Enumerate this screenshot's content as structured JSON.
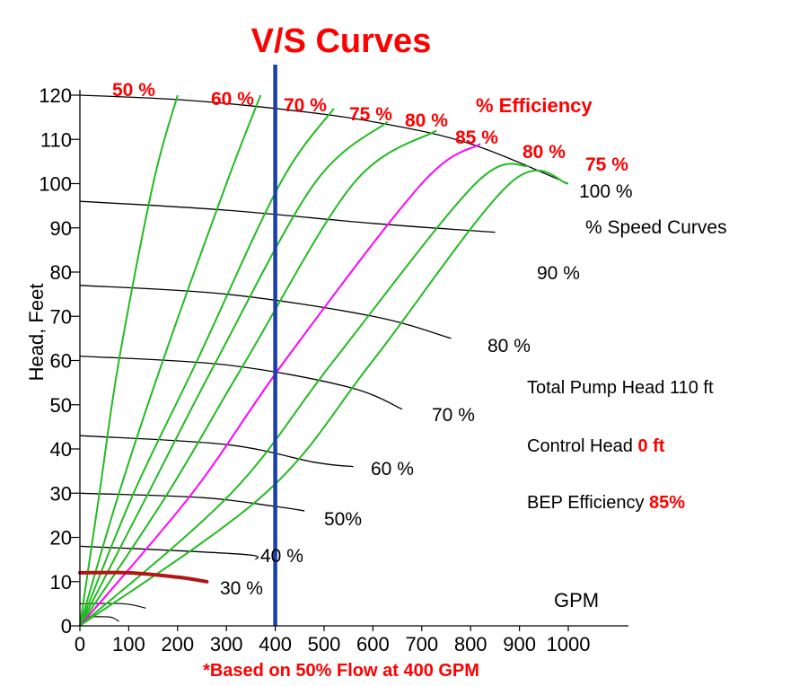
{
  "chart_data": {
    "type": "line",
    "title": "V/S Curves",
    "footnote": "*Based on 50% Flow at 400 GPM",
    "xlabel": "GPM",
    "ylabel": "Head, Feet",
    "xlim": [
      0,
      1000
    ],
    "ylim": [
      0,
      120
    ],
    "x_ticks": [
      "0",
      "100",
      "200",
      "300",
      "400",
      "500",
      "600",
      "700",
      "800",
      "900",
      "1000"
    ],
    "y_ticks": [
      "0",
      "10",
      "20",
      "30",
      "40",
      "50",
      "60",
      "70",
      "80",
      "90",
      "100",
      "110",
      "120"
    ],
    "speed_section_label": "% Speed Curves",
    "efficiency_section_label": "% Efficiency",
    "speed_curves": [
      {
        "name": "100 %",
        "points": [
          [
            0,
            120
          ],
          [
            200,
            119
          ],
          [
            400,
            117
          ],
          [
            600,
            114
          ],
          [
            800,
            109
          ],
          [
            1000,
            100
          ]
        ]
      },
      {
        "name": "90 %",
        "points": [
          [
            0,
            96
          ],
          [
            300,
            94
          ],
          [
            600,
            91
          ],
          [
            850,
            89
          ]
        ]
      },
      {
        "name": "80 %",
        "points": [
          [
            0,
            77
          ],
          [
            300,
            75
          ],
          [
            600,
            70
          ],
          [
            760,
            65
          ]
        ]
      },
      {
        "name": "70 %",
        "points": [
          [
            0,
            61
          ],
          [
            300,
            59
          ],
          [
            550,
            54
          ],
          [
            660,
            49
          ]
        ]
      },
      {
        "name": "60 %",
        "points": [
          [
            0,
            43
          ],
          [
            300,
            41
          ],
          [
            480,
            37
          ],
          [
            560,
            36
          ]
        ]
      },
      {
        "name": "50%",
        "points": [
          [
            0,
            30
          ],
          [
            250,
            29
          ],
          [
            400,
            27
          ],
          [
            460,
            26
          ]
        ]
      },
      {
        "name": "40 %",
        "points": [
          [
            0,
            18
          ],
          [
            200,
            17
          ],
          [
            350,
            16
          ],
          [
            360,
            15
          ]
        ]
      },
      {
        "name": "30 %",
        "points": [
          [
            0,
            12
          ],
          [
            100,
            12
          ],
          [
            200,
            11
          ],
          [
            260,
            10
          ]
        ]
      }
    ],
    "small_speed_curves": [
      {
        "points": [
          [
            0,
            5
          ],
          [
            90,
            5
          ],
          [
            135,
            4
          ]
        ]
      },
      {
        "points": [
          [
            0,
            2
          ],
          [
            60,
            2
          ],
          [
            80,
            1
          ]
        ]
      }
    ],
    "efficiency_curves": [
      {
        "name": "50 %",
        "label_pos": [
          90,
          122
        ],
        "points": [
          [
            0,
            0
          ],
          [
            40,
            30
          ],
          [
            80,
            60
          ],
          [
            150,
            100
          ],
          [
            200,
            120
          ]
        ]
      },
      {
        "name": "60 %",
        "label_pos": [
          280,
          119
        ],
        "points": [
          [
            0,
            0
          ],
          [
            80,
            30
          ],
          [
            170,
            60
          ],
          [
            300,
            100
          ],
          [
            370,
            120
          ]
        ]
      },
      {
        "name": "70 %",
        "label_pos": [
          480,
          116
        ],
        "points": [
          [
            0,
            0
          ],
          [
            110,
            30
          ],
          [
            240,
            60
          ],
          [
            410,
            100
          ],
          [
            520,
            117
          ]
        ]
      },
      {
        "name": "75 %",
        "label_pos": [
          590,
          113
        ],
        "points": [
          [
            0,
            0
          ],
          [
            140,
            30
          ],
          [
            280,
            60
          ],
          [
            480,
            100
          ],
          [
            630,
            114
          ]
        ]
      },
      {
        "name": "80 %",
        "label_pos": [
          700,
          112
        ],
        "points": [
          [
            0,
            0
          ],
          [
            180,
            30
          ],
          [
            340,
            60
          ],
          [
            560,
            100
          ],
          [
            730,
            112
          ]
        ]
      },
      {
        "name": "85 %",
        "label_pos": [
          820,
          109
        ],
        "points": [
          [
            0,
            0
          ],
          [
            230,
            30
          ],
          [
            420,
            60
          ],
          [
            700,
            100
          ],
          [
            820,
            109
          ]
        ]
      },
      {
        "name": "80 %",
        "label_pos": [
          920,
          104
        ],
        "points": [
          [
            0,
            0
          ],
          [
            310,
            30
          ],
          [
            520,
            60
          ],
          [
            810,
            100
          ],
          [
            920,
            104
          ]
        ]
      },
      {
        "name": "75 %",
        "label_pos": [
          1000,
          100
        ],
        "points": [
          [
            0,
            0
          ],
          [
            380,
            30
          ],
          [
            600,
            60
          ],
          [
            880,
            100
          ],
          [
            1000,
            100
          ]
        ]
      }
    ],
    "highlight_efficiency_index": 5,
    "system_curve": {
      "points": [
        [
          0,
          12
        ],
        [
          100,
          12
        ],
        [
          200,
          11
        ],
        [
          260,
          10
        ]
      ]
    },
    "control_line_x": 400,
    "annotations": {
      "total_pump_head": "Total Pump Head 110 ft",
      "control_head_prefix": "Control Head ",
      "control_head_value": "0 ft",
      "bep_prefix": "BEP Efficiency  ",
      "bep_value": "85%"
    },
    "colors": {
      "efficiency": "#22bb22",
      "efficiency_highlight": "#ff00ff",
      "speed": "#000000",
      "control_line": "#1c3ea8",
      "system_curve": "#b41414",
      "label_red": "#ff0000"
    },
    "legend": "none"
  }
}
